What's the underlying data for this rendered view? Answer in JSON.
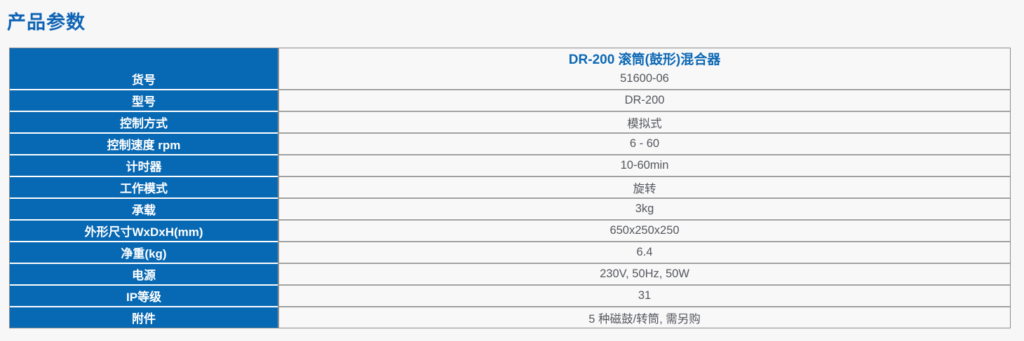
{
  "page": {
    "title": "产品参数"
  },
  "colors": {
    "accent_blue": "#0768b3",
    "title_blue": "#0e63b4",
    "header_text_blue": "#0c68b4",
    "value_text_gray": "#55575c",
    "value_bg": "#f8f8f9",
    "border_gray": "#8a8a8a",
    "page_bg": "#f7f7f8"
  },
  "table": {
    "header": {
      "product_name": "DR-200 滚筒(鼓形)混合器"
    },
    "rows": [
      {
        "label": "货号",
        "value": "51600-06"
      },
      {
        "label": "型号",
        "value": "DR-200"
      },
      {
        "label": "控制方式",
        "value": "模拟式"
      },
      {
        "label": "控制速度 rpm",
        "value": "6 - 60"
      },
      {
        "label": "计时器",
        "value": "10-60min"
      },
      {
        "label": "工作模式",
        "value": "旋转"
      },
      {
        "label": "承载",
        "value": "3kg"
      },
      {
        "label": "外形尺寸WxDxH(mm)",
        "value": "650x250x250"
      },
      {
        "label": "净重(kg)",
        "value": "6.4"
      },
      {
        "label": "电源",
        "value": "230V, 50Hz, 50W"
      },
      {
        "label": "IP等级",
        "value": "31"
      },
      {
        "label": "附件",
        "value": "5 种磁鼓/转筒, 需另购"
      }
    ]
  }
}
